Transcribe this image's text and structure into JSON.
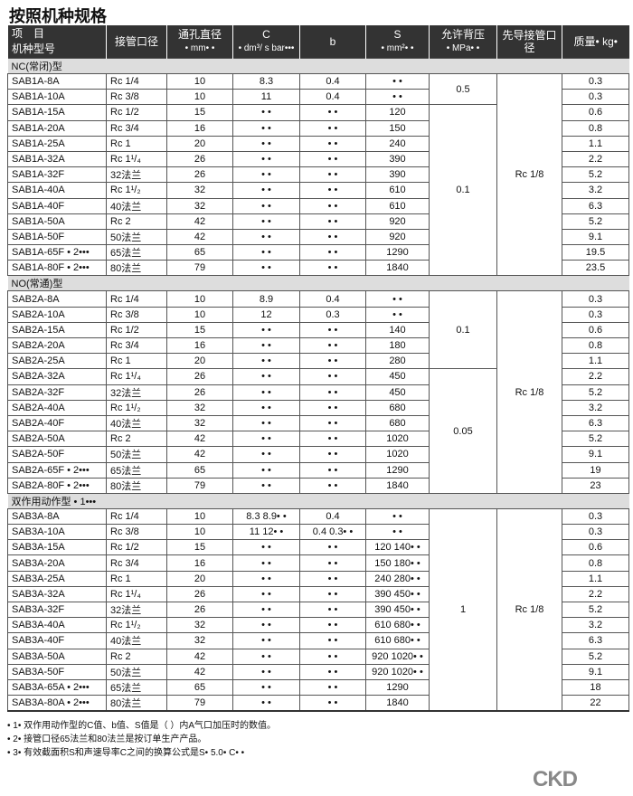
{
  "title": "按照机种规格",
  "headers": {
    "item": "项　目",
    "model": "机种型号",
    "port": "接管口径",
    "bore": "通孔直径",
    "bore_unit": "• mm• •",
    "c": "C",
    "c_unit": "• dm³/ s bar•••",
    "b": "b",
    "s": "S",
    "s_unit": "• mm²• •",
    "bp": "允许背压",
    "bp_unit": "• MPa• •",
    "pilot": "先导接管口径",
    "mass": "质量• kg•"
  },
  "sections": [
    {
      "label": "NC(常闭)型",
      "pilot": "Rc 1/8",
      "bp_groups": [
        {
          "value": "0.5",
          "span": 2
        },
        {
          "value": "0.1",
          "span": 11
        }
      ],
      "rows": [
        [
          "SAB1A-8A",
          "Rc 1/4",
          "10",
          "8.3",
          "0.4",
          "• •",
          "0.3"
        ],
        [
          "SAB1A-10A",
          "Rc 3/8",
          "10",
          "11",
          "0.4",
          "• •",
          "0.3"
        ],
        [
          "SAB1A-15A",
          "Rc 1/2",
          "15",
          "• •",
          "• •",
          "120",
          "0.6"
        ],
        [
          "SAB1A-20A",
          "Rc 3/4",
          "16",
          "• •",
          "• •",
          "150",
          "0.8"
        ],
        [
          "SAB1A-25A",
          "Rc 1",
          "20",
          "• •",
          "• •",
          "240",
          "1.1"
        ],
        [
          "SAB1A-32A",
          "Rc 1¹/₄",
          "26",
          "• •",
          "• •",
          "390",
          "2.2"
        ],
        [
          "SAB1A-32F",
          "32法兰",
          "26",
          "• •",
          "• •",
          "390",
          "5.2"
        ],
        [
          "SAB1A-40A",
          "Rc 1¹/₂",
          "32",
          "• •",
          "• •",
          "610",
          "3.2"
        ],
        [
          "SAB1A-40F",
          "40法兰",
          "32",
          "• •",
          "• •",
          "610",
          "6.3"
        ],
        [
          "SAB1A-50A",
          "Rc 2",
          "42",
          "• •",
          "• •",
          "920",
          "5.2"
        ],
        [
          "SAB1A-50F",
          "50法兰",
          "42",
          "• •",
          "• •",
          "920",
          "9.1"
        ],
        [
          "SAB1A-65F • 2•••",
          "65法兰",
          "65",
          "• •",
          "• •",
          "1290",
          "19.5"
        ],
        [
          "SAB1A-80F • 2•••",
          "80法兰",
          "79",
          "• •",
          "• •",
          "1840",
          "23.5"
        ]
      ]
    },
    {
      "label": "NO(常通)型",
      "pilot": "Rc 1/8",
      "bp_groups": [
        {
          "value": "0.1",
          "span": 5
        },
        {
          "value": "0.05",
          "span": 8
        }
      ],
      "rows": [
        [
          "SAB2A-8A",
          "Rc 1/4",
          "10",
          "8.9",
          "0.4",
          "• •",
          "0.3"
        ],
        [
          "SAB2A-10A",
          "Rc 3/8",
          "10",
          "12",
          "0.3",
          "• •",
          "0.3"
        ],
        [
          "SAB2A-15A",
          "Rc 1/2",
          "15",
          "• •",
          "• •",
          "140",
          "0.6"
        ],
        [
          "SAB2A-20A",
          "Rc 3/4",
          "16",
          "• •",
          "• •",
          "180",
          "0.8"
        ],
        [
          "SAB2A-25A",
          "Rc 1",
          "20",
          "• •",
          "• •",
          "280",
          "1.1"
        ],
        [
          "SAB2A-32A",
          "Rc 1¹/₄",
          "26",
          "• •",
          "• •",
          "450",
          "2.2"
        ],
        [
          "SAB2A-32F",
          "32法兰",
          "26",
          "• •",
          "• •",
          "450",
          "5.2"
        ],
        [
          "SAB2A-40A",
          "Rc 1¹/₂",
          "32",
          "• •",
          "• •",
          "680",
          "3.2"
        ],
        [
          "SAB2A-40F",
          "40法兰",
          "32",
          "• •",
          "• •",
          "680",
          "6.3"
        ],
        [
          "SAB2A-50A",
          "Rc 2",
          "42",
          "• •",
          "• •",
          "1020",
          "5.2"
        ],
        [
          "SAB2A-50F",
          "50法兰",
          "42",
          "• •",
          "• •",
          "1020",
          "9.1"
        ],
        [
          "SAB2A-65F • 2•••",
          "65法兰",
          "65",
          "• •",
          "• •",
          "1290",
          "19"
        ],
        [
          "SAB2A-80F • 2•••",
          "80法兰",
          "79",
          "• •",
          "• •",
          "1840",
          "23"
        ]
      ]
    },
    {
      "label": "双作用动作型 • 1•••",
      "pilot": "Rc 1/8",
      "bp_groups": [
        {
          "value": "1",
          "span": 13
        }
      ],
      "rows": [
        [
          "SAB3A-8A",
          "Rc 1/4",
          "10",
          "8.3 8.9• •",
          "0.4",
          "• •",
          "0.3"
        ],
        [
          "SAB3A-10A",
          "Rc 3/8",
          "10",
          "11 12• •",
          "0.4 0.3• •",
          "• •",
          "0.3"
        ],
        [
          "SAB3A-15A",
          "Rc 1/2",
          "15",
          "• •",
          "• •",
          "120 140• •",
          "0.6"
        ],
        [
          "SAB3A-20A",
          "Rc 3/4",
          "16",
          "• •",
          "• •",
          "150 180• •",
          "0.8"
        ],
        [
          "SAB3A-25A",
          "Rc 1",
          "20",
          "• •",
          "• •",
          "240 280• •",
          "1.1"
        ],
        [
          "SAB3A-32A",
          "Rc 1¹/₄",
          "26",
          "• •",
          "• •",
          "390 450• •",
          "2.2"
        ],
        [
          "SAB3A-32F",
          "32法兰",
          "26",
          "• •",
          "• •",
          "390 450• •",
          "5.2"
        ],
        [
          "SAB3A-40A",
          "Rc 1¹/₂",
          "32",
          "• •",
          "• •",
          "610 680• •",
          "3.2"
        ],
        [
          "SAB3A-40F",
          "40法兰",
          "32",
          "• •",
          "• •",
          "610 680• •",
          "6.3"
        ],
        [
          "SAB3A-50A",
          "Rc 2",
          "42",
          "• •",
          "• •",
          "920 1020• •",
          "5.2"
        ],
        [
          "SAB3A-50F",
          "50法兰",
          "42",
          "• •",
          "• •",
          "920 1020• •",
          "9.1"
        ],
        [
          "SAB3A-65A • 2•••",
          "65法兰",
          "65",
          "• •",
          "• •",
          "1290",
          "18"
        ],
        [
          "SAB3A-80A • 2•••",
          "80法兰",
          "79",
          "• •",
          "• •",
          "1840",
          "22"
        ]
      ]
    }
  ],
  "notes": [
    "• 1• 双作用动作型的C值、b值、S值是（ ）内A气口加压时的数值。",
    "• 2• 接管口径65法兰和80法兰是按订单生产产品。",
    "• 3• 有效截面积S和声速导率C之间的换算公式是S• 5.0• C• •"
  ],
  "logo": "CKD"
}
